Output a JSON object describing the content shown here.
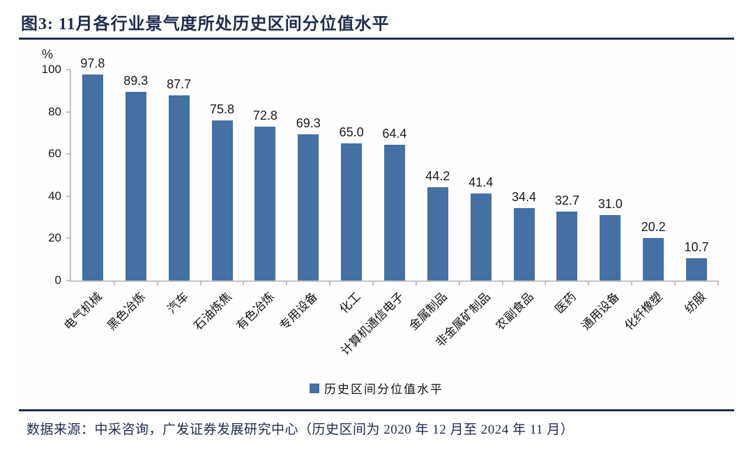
{
  "figure": {
    "title": "图3:  11月各行业景气度所处历史区间分位值水平",
    "footer": "数据来源：中采咨询，广发证券发展研究中心（历史区间为 2020 年 12 月至 2024 年 11 月）"
  },
  "colors": {
    "bar": "#4470a3",
    "navy": "#1f2b4d",
    "axis": "#c3c3c3"
  },
  "chart_data": {
    "type": "bar",
    "title": "11月各行业景气度所处历史区间分位值水平",
    "unit_label": "%",
    "categories": [
      "电气机械",
      "黑色冶炼",
      "汽车",
      "石油炼焦",
      "有色冶炼",
      "专用设备",
      "化工",
      "计算机通信电子",
      "金属制品",
      "非金属矿制品",
      "农副食品",
      "医药",
      "通用设备",
      "化纤橡塑",
      "纺服"
    ],
    "values": [
      97.8,
      89.3,
      87.7,
      75.8,
      72.8,
      69.3,
      65.0,
      64.4,
      44.2,
      41.4,
      34.4,
      32.7,
      31.0,
      20.2,
      10.7
    ],
    "value_label_decimals": 1,
    "xlabel": "",
    "ylabel": "%",
    "ylim": [
      0,
      100
    ],
    "yticks": [
      0,
      20,
      40,
      60,
      80,
      100
    ],
    "grid": false,
    "legend": {
      "position": "bottom",
      "entries": [
        "历史区间分位值水平"
      ]
    }
  }
}
